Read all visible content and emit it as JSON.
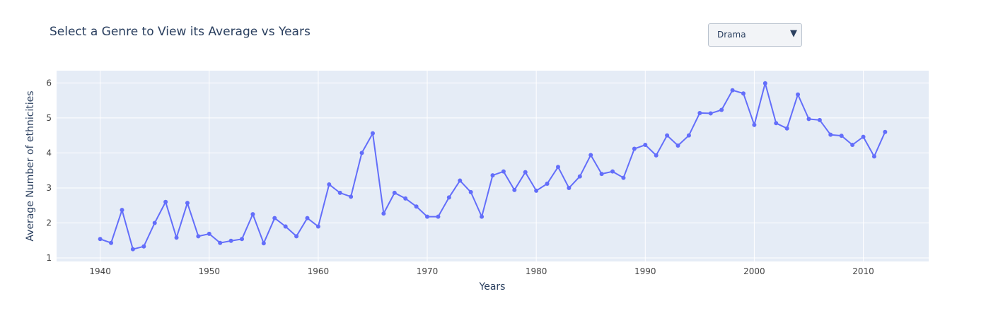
{
  "title": "Select a Genre to View its Average vs Years",
  "dropdown": {
    "selected": "Drama",
    "arrow": "▼"
  },
  "colors": {
    "plot_bg": "#e5ecf6",
    "grid": "#ffffff",
    "line": "#636efa",
    "text": "#2a3f5f",
    "tick_text": "#444444"
  },
  "chart_data": {
    "type": "line",
    "title": "Select a Genre to View its Average vs Years",
    "xlabel": "Years",
    "ylabel": "Average Number of ethnicities",
    "xlim": [
      1936,
      2016
    ],
    "ylim": [
      0.9,
      6.35
    ],
    "xticks": [
      1940,
      1950,
      1960,
      1970,
      1980,
      1990,
      2000,
      2010
    ],
    "yticks": [
      1,
      2,
      3,
      4,
      5,
      6
    ],
    "grid": true,
    "mode": "lines+markers",
    "series": [
      {
        "x": [
          1940,
          1941,
          1942,
          1943,
          1944,
          1945,
          1946,
          1947,
          1948,
          1949,
          1950,
          1951,
          1952,
          1953,
          1954,
          1955,
          1956,
          1957,
          1958,
          1959,
          1960,
          1961,
          1962,
          1963,
          1964,
          1965,
          1966,
          1967,
          1968,
          1969,
          1970,
          1971,
          1972,
          1973,
          1974,
          1975,
          1976,
          1977,
          1978,
          1979,
          1980,
          1981,
          1982,
          1983,
          1984,
          1985,
          1986,
          1987,
          1988,
          1989,
          1990,
          1991,
          1992,
          1993,
          1994,
          1995,
          1996,
          1997,
          1998,
          1999,
          2000,
          2001,
          2002,
          2003,
          2004,
          2005,
          2006,
          2007,
          2008,
          2009,
          2010,
          2011,
          2012
        ],
        "y": [
          1.54,
          1.43,
          2.37,
          1.25,
          1.33,
          2.0,
          2.6,
          1.58,
          2.57,
          1.62,
          1.69,
          1.43,
          1.49,
          1.54,
          2.25,
          1.42,
          2.14,
          1.9,
          1.62,
          2.14,
          1.9,
          3.1,
          2.86,
          2.75,
          4.0,
          4.56,
          2.27,
          2.86,
          2.7,
          2.47,
          2.18,
          2.18,
          2.73,
          3.21,
          2.88,
          2.18,
          3.36,
          3.47,
          2.94,
          3.45,
          2.92,
          3.12,
          3.6,
          3.0,
          3.33,
          3.94,
          3.4,
          3.47,
          3.29,
          4.12,
          4.23,
          3.93,
          4.5,
          4.21,
          4.5,
          5.14,
          5.13,
          5.23,
          5.79,
          5.7,
          4.8,
          5.99,
          4.85,
          4.7,
          5.67,
          4.97,
          4.94,
          4.52,
          4.49,
          4.23,
          4.46,
          3.9,
          4.6
        ]
      }
    ]
  }
}
